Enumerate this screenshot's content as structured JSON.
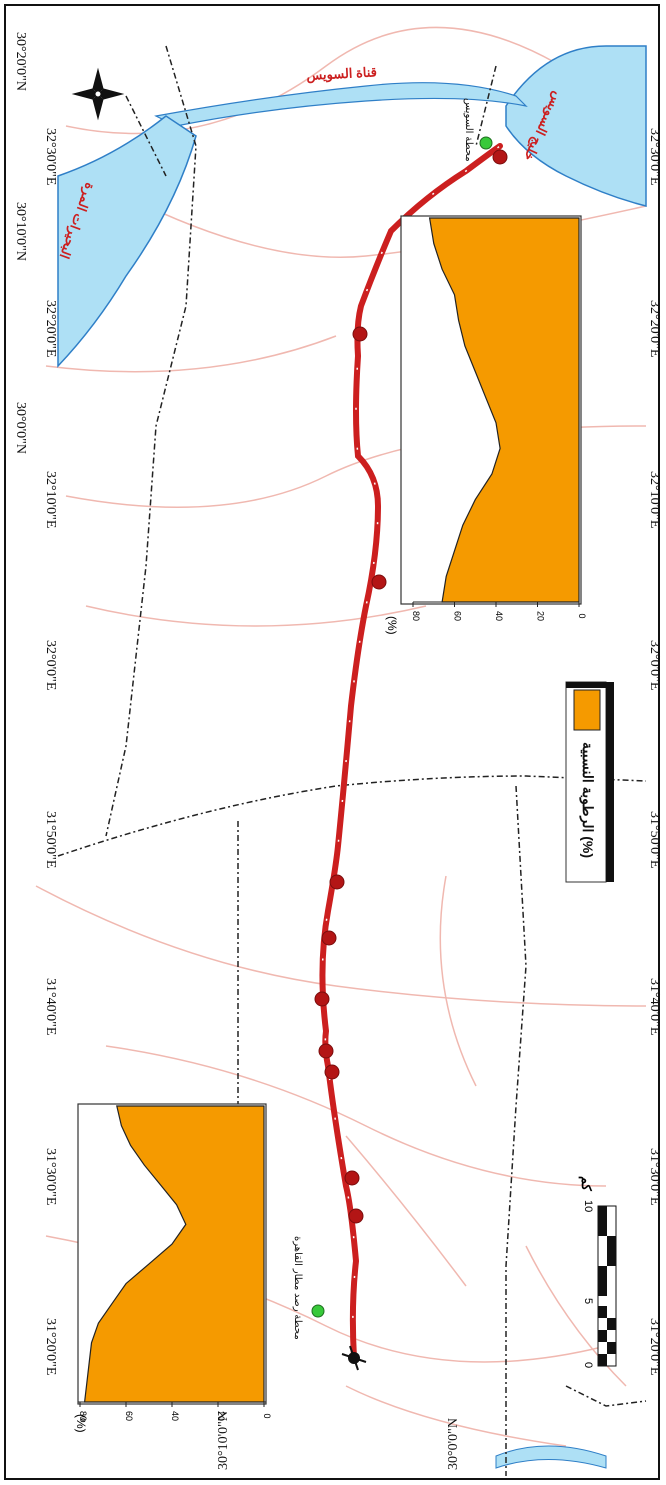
{
  "colors": {
    "water": "#aee0f5",
    "water_edge": "#2f7fc7",
    "route": "#cc1f1f",
    "route_dot": "#b31515",
    "station": "#38c93a",
    "area": "#f59a00",
    "road": "#f0b8b0",
    "boundary": "#222222"
  },
  "graticule": {
    "left_labels": [
      "30°20'0\"N",
      "30°10'0\"N",
      "30°0'0\"N"
    ],
    "right_labels": [
      "30°0'0\"N",
      "30°10'0\"N"
    ],
    "bottom_labels": [
      "31°20'0\"E",
      "31°30'0\"E",
      "31°40'0\"E",
      "31°50'0\"E",
      "32°0'0\"E",
      "32°10'0\"E",
      "32°20'0\"E",
      "32°30'0\"E"
    ],
    "top_labels": [
      "31°20'0\"E",
      "31°30'0\"E",
      "31°40'0\"E",
      "31°50'0\"E",
      "32°0'0\"E",
      "32°10'0\"E",
      "32°20'0\"E",
      "32°30'0\"E"
    ]
  },
  "places": {
    "canal": "قناة السويس",
    "lake": "البحيرات المرة",
    "gulf": "خليج السويس",
    "station_start": "محطة رصد مطار القاهرة",
    "station_end": "محطة السويس"
  },
  "legend": {
    "label": "الرطوبة النسبية (%)"
  },
  "scale_bar": {
    "ticks": [
      "0",
      "5",
      "10"
    ],
    "unit": "كم"
  },
  "profile_upper": {
    "unit": "(%)",
    "ticks": [
      "0",
      "20",
      "40",
      "60",
      "80"
    ],
    "values": [
      72,
      70,
      66,
      60,
      58,
      55,
      50,
      45,
      40,
      38,
      42,
      50,
      56,
      60,
      64,
      66
    ]
  },
  "profile_lower": {
    "unit": "(%)",
    "ticks": [
      "0",
      "20",
      "40",
      "60",
      "80"
    ],
    "values": [
      64,
      62,
      58,
      52,
      45,
      38,
      34,
      40,
      50,
      60,
      66,
      72,
      75,
      76,
      77,
      78
    ]
  }
}
